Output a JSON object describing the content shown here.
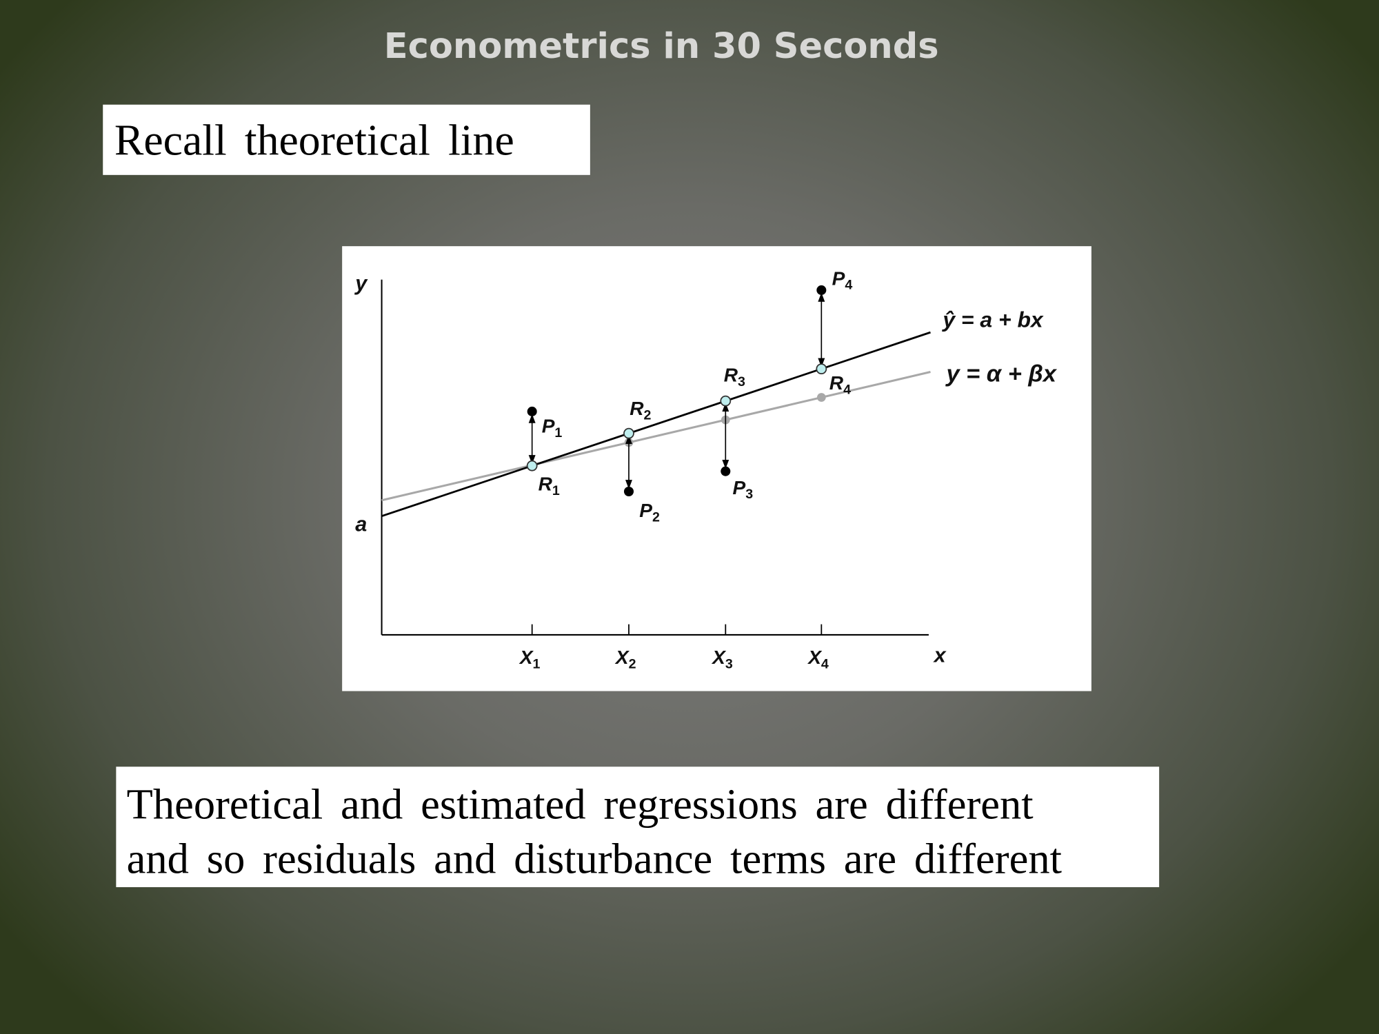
{
  "slide": {
    "title": "Econometrics in 30 Seconds",
    "caption_top": "Recall theoretical line",
    "caption_bottom_line1": "Theoretical and estimated regressions are different",
    "caption_bottom_line2": "and so residuals and disturbance terms are different"
  },
  "chart_data": {
    "type": "line",
    "xlabel": "x",
    "ylabel": "y",
    "intercept_label": "a",
    "x_ticks": [
      "X1",
      "X2",
      "X3",
      "X4"
    ],
    "series": [
      {
        "name": "ŷ = a + bx",
        "color": "#000000",
        "role": "estimated regression"
      },
      {
        "name": "y = α + βx",
        "color": "#a8a8a8",
        "role": "theoretical line"
      }
    ],
    "observed_points": [
      "P1",
      "P2",
      "P3",
      "P4"
    ],
    "fitted_points": [
      "R1",
      "R2",
      "R3",
      "R4"
    ],
    "fitted_point_color": "#bfeeee",
    "grid": false
  }
}
